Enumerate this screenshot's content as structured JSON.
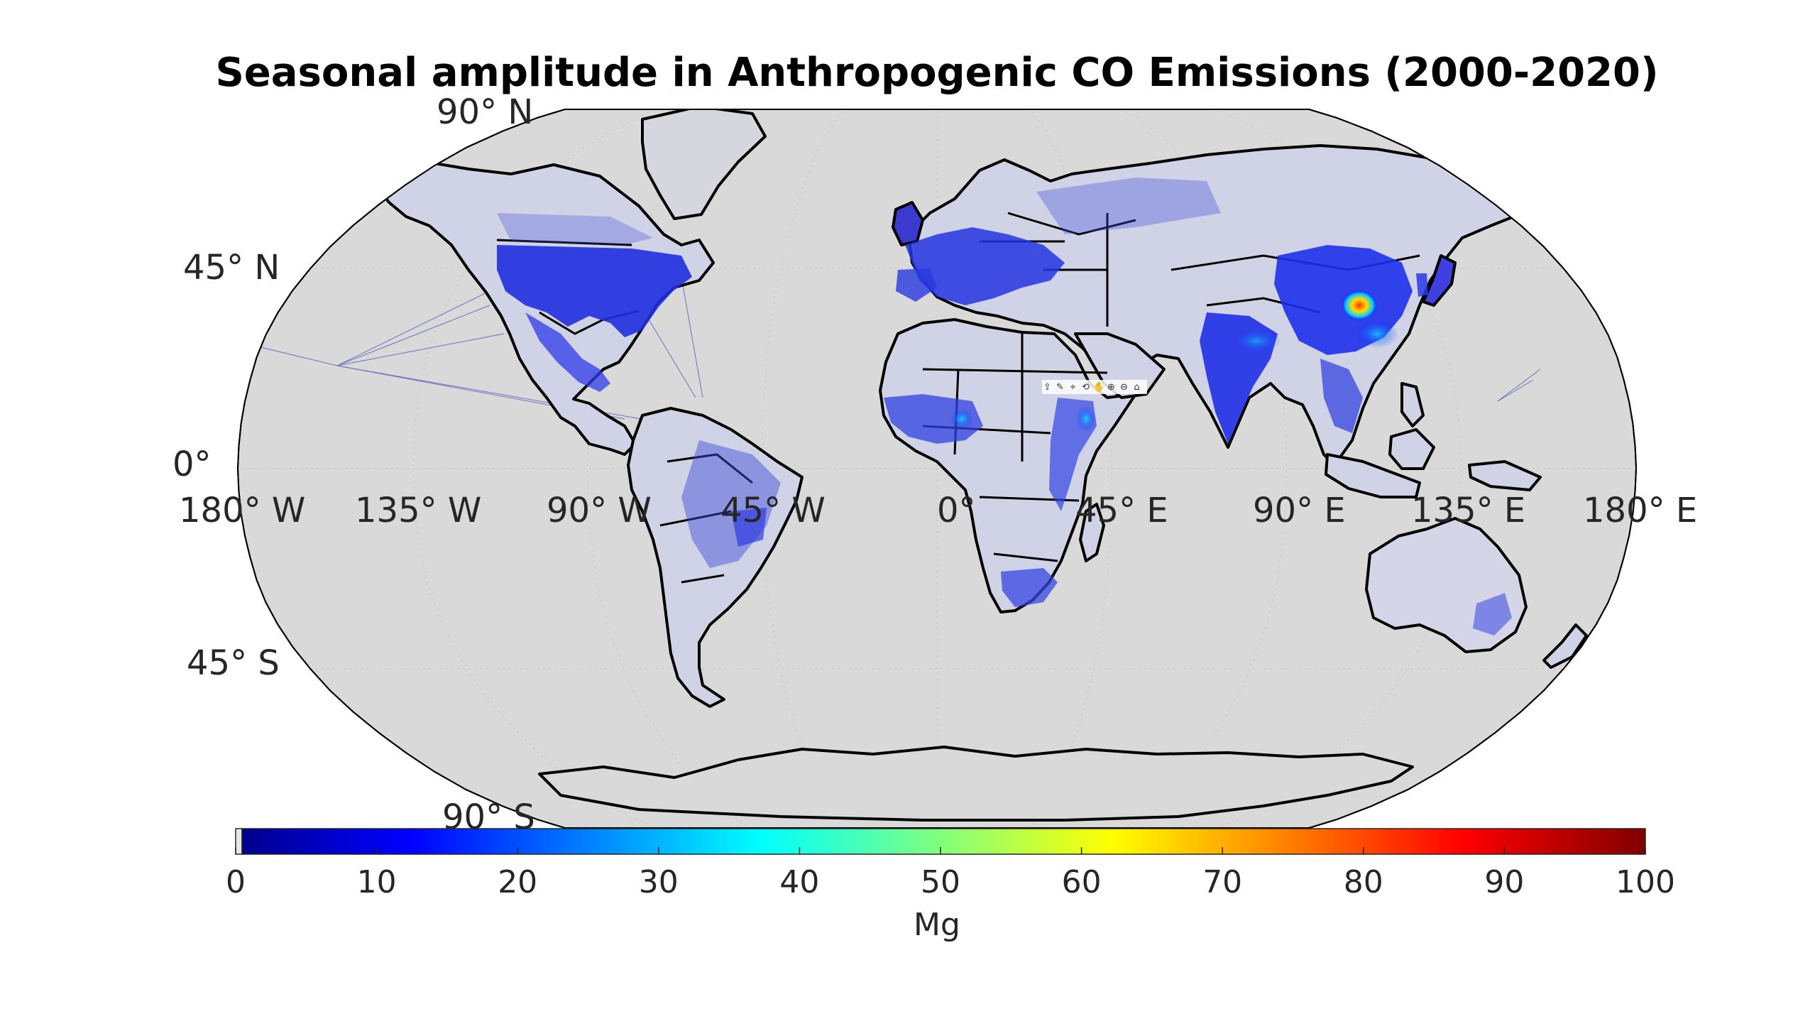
{
  "figure": {
    "title": "Seasonal amplitude in Anthropogenic CO Emissions (2000-2020)"
  },
  "map": {
    "projection": "robinson",
    "ocean_color": "#d9d9d9",
    "border_color": "#000000",
    "graticule_color": "#bdbdbd",
    "lat_labels": [
      {
        "id": "lat-90n",
        "text": "90° N"
      },
      {
        "id": "lat-45n",
        "text": "45° N"
      },
      {
        "id": "lat-0",
        "text": "0°"
      },
      {
        "id": "lat-45s",
        "text": "45° S"
      },
      {
        "id": "lat-90s",
        "text": "90° S"
      }
    ],
    "lon_labels": [
      {
        "id": "lon-180w",
        "text": "180° W"
      },
      {
        "id": "lon-135w",
        "text": "135° W"
      },
      {
        "id": "lon-90w",
        "text": "90° W"
      },
      {
        "id": "lon-45w",
        "text": "45° W"
      },
      {
        "id": "lon-0",
        "text": "0°"
      },
      {
        "id": "lon-45e",
        "text": "45° E"
      },
      {
        "id": "lon-90e",
        "text": "90° E"
      },
      {
        "id": "lon-135e",
        "text": "135° E"
      },
      {
        "id": "lon-180e",
        "text": "180° E"
      }
    ],
    "hotspots": [
      {
        "name": "north-china-plain",
        "value": 75
      },
      {
        "name": "eastern-china",
        "value": 30
      },
      {
        "name": "ganges-plain",
        "value": 25
      },
      {
        "name": "nigeria",
        "value": 35
      },
      {
        "name": "ethiopia",
        "value": 30
      },
      {
        "name": "eastern-united-states",
        "value": 10
      }
    ]
  },
  "colorbar": {
    "label": "Mg",
    "min": 0,
    "max": 100,
    "ticks": [
      "0",
      "10",
      "20",
      "30",
      "40",
      "50",
      "60",
      "70",
      "80",
      "90",
      "100"
    ],
    "colormap": [
      "#00008f",
      "#0000ff",
      "#00ffff",
      "#ffff00",
      "#ff0000",
      "#800000"
    ]
  },
  "toolbar": {
    "icons": [
      "export-icon",
      "brush-icon",
      "datatip-icon",
      "rotate-icon",
      "pan-icon",
      "zoom-in-icon",
      "zoom-out-icon",
      "home-icon"
    ],
    "glyphs": [
      "⇪",
      "✎",
      "⌖",
      "⟲",
      "✋",
      "⊕",
      "⊖",
      "⌂"
    ]
  }
}
